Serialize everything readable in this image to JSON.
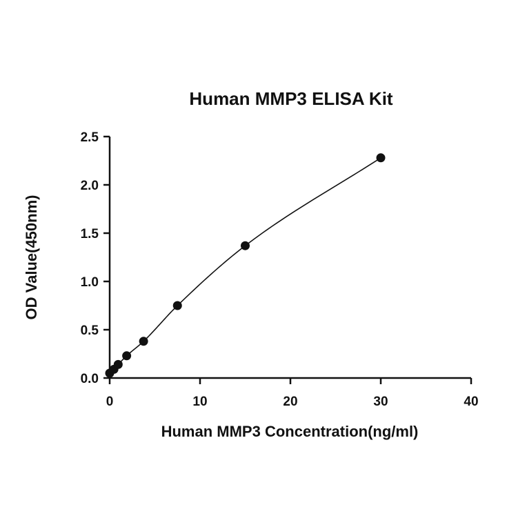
{
  "chart_data": {
    "type": "scatter",
    "title": "Human MMP3 ELISA Kit",
    "xlabel": "Human  MMP3 Concentration(ng/ml)",
    "ylabel": "OD Value(450nm)",
    "xlim": [
      0,
      40
    ],
    "ylim": [
      0,
      2.5
    ],
    "xticks": [
      0,
      10,
      20,
      30,
      40
    ],
    "xtick_labels": [
      "0",
      "10",
      "20",
      "30",
      "40"
    ],
    "yticks": [
      0,
      0.5,
      1.0,
      1.5,
      2.0,
      2.5
    ],
    "ytick_labels": [
      "0.0",
      "0.5",
      "1.0",
      "1.5",
      "2.0",
      "2.5"
    ],
    "grid": false,
    "legend": "none",
    "fit_line": true,
    "series": [
      {
        "x": [
          0,
          0.47,
          0.94,
          1.88,
          3.75,
          7.5,
          15,
          30
        ],
        "y": [
          0.05,
          0.09,
          0.14,
          0.23,
          0.38,
          0.75,
          1.37,
          2.28
        ]
      }
    ]
  },
  "colors": {
    "marker": "#111111",
    "line": "#111111",
    "axis": "#111111",
    "background": "#ffffff"
  }
}
